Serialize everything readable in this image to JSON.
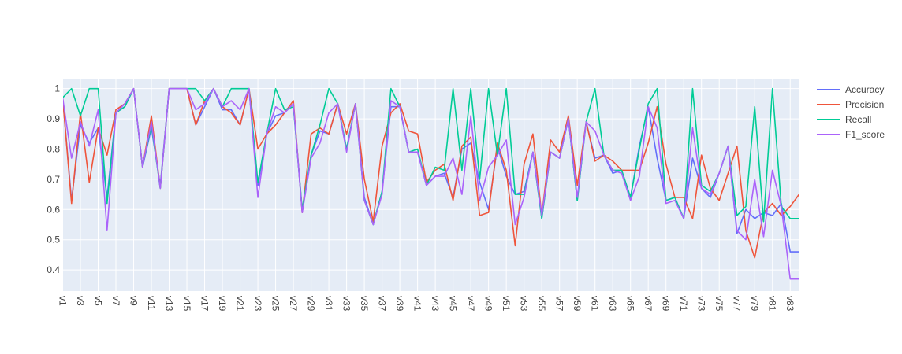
{
  "colors": {
    "plot_bg": "#e5ecf6",
    "grid": "#ffffff",
    "text": "#444444"
  },
  "chart_data": {
    "type": "line",
    "title": "",
    "xlabel": "",
    "ylabel": "",
    "ylim": [
      0.33,
      1.033
    ],
    "y_ticks": [
      0.4,
      0.5,
      0.6,
      0.7,
      0.8,
      0.9,
      1
    ],
    "x_tick_labels": [
      "v1",
      "v3",
      "v5",
      "v7",
      "v9",
      "v11",
      "v13",
      "v15",
      "v17",
      "v19",
      "v21",
      "v23",
      "v25",
      "v27",
      "v29",
      "v31",
      "v33",
      "v35",
      "v37",
      "v39",
      "v41",
      "v43",
      "v45",
      "v47",
      "v49",
      "v51",
      "v53",
      "v55",
      "v57",
      "v59",
      "v61",
      "v63",
      "v65",
      "v67",
      "v69",
      "v71",
      "v73",
      "v75",
      "v77",
      "v79",
      "v81",
      "v83"
    ],
    "categories": [
      "v1",
      "v2",
      "v3",
      "v4",
      "v5",
      "v6",
      "v7",
      "v8",
      "v9",
      "v10",
      "v11",
      "v12",
      "v13",
      "v14",
      "v15",
      "v16",
      "v17",
      "v18",
      "v19",
      "v20",
      "v21",
      "v22",
      "v23",
      "v24",
      "v25",
      "v26",
      "v27",
      "v28",
      "v29",
      "v30",
      "v31",
      "v32",
      "v33",
      "v34",
      "v35",
      "v36",
      "v37",
      "v38",
      "v39",
      "v40",
      "v41",
      "v42",
      "v43",
      "v44",
      "v45",
      "v46",
      "v47",
      "v48",
      "v49",
      "v50",
      "v51",
      "v52",
      "v53",
      "v54",
      "v55",
      "v56",
      "v57",
      "v58",
      "v59",
      "v60",
      "v61",
      "v62",
      "v63",
      "v64",
      "v65",
      "v66",
      "v67",
      "v68",
      "v69",
      "v70",
      "v71",
      "v72",
      "v73",
      "v74",
      "v75",
      "v76",
      "v77",
      "v78",
      "v79",
      "v80",
      "v81",
      "v82",
      "v83",
      "v84"
    ],
    "legend_position": "top-right",
    "series": [
      {
        "name": "Accuracy",
        "color": "#636efa",
        "values": [
          0.97,
          0.63,
          0.88,
          0.82,
          0.87,
          0.64,
          0.92,
          0.94,
          1.0,
          0.74,
          0.87,
          0.68,
          1.0,
          1.0,
          1.0,
          0.88,
          0.94,
          1.0,
          0.93,
          0.93,
          0.88,
          1.0,
          0.68,
          0.85,
          0.91,
          0.92,
          0.95,
          0.59,
          0.78,
          0.86,
          0.85,
          0.95,
          0.8,
          0.95,
          0.64,
          0.55,
          0.66,
          0.94,
          0.94,
          0.79,
          0.79,
          0.68,
          0.71,
          0.72,
          0.64,
          0.8,
          0.82,
          0.69,
          0.6,
          0.81,
          0.71,
          0.65,
          0.66,
          0.79,
          0.57,
          0.79,
          0.77,
          0.9,
          0.63,
          0.89,
          0.77,
          0.78,
          0.72,
          0.73,
          0.64,
          0.81,
          0.94,
          0.77,
          0.63,
          0.64,
          0.57,
          0.77,
          0.67,
          0.64,
          0.72,
          0.81,
          0.52,
          0.6,
          0.57,
          0.59,
          0.58,
          0.62,
          0.46,
          0.46
        ]
      },
      {
        "name": "Precision",
        "color": "#ef553b",
        "values": [
          0.97,
          0.62,
          0.92,
          0.69,
          0.87,
          0.78,
          0.93,
          0.95,
          1.0,
          0.74,
          0.91,
          0.67,
          1.0,
          1.0,
          1.0,
          0.88,
          0.96,
          1.0,
          0.94,
          0.92,
          0.88,
          1.0,
          0.8,
          0.85,
          0.88,
          0.92,
          0.96,
          0.59,
          0.85,
          0.87,
          0.85,
          0.95,
          0.85,
          0.95,
          0.7,
          0.56,
          0.81,
          0.92,
          0.95,
          0.86,
          0.85,
          0.69,
          0.73,
          0.75,
          0.63,
          0.81,
          0.84,
          0.58,
          0.59,
          0.82,
          0.73,
          0.48,
          0.75,
          0.85,
          0.58,
          0.83,
          0.79,
          0.91,
          0.68,
          0.89,
          0.76,
          0.78,
          0.76,
          0.73,
          0.73,
          0.73,
          0.82,
          0.94,
          0.75,
          0.64,
          0.64,
          0.57,
          0.78,
          0.67,
          0.63,
          0.72,
          0.81,
          0.53,
          0.44,
          0.59,
          0.62,
          0.58,
          0.61,
          0.65
        ]
      },
      {
        "name": "Recall",
        "color": "#00cc96",
        "values": [
          0.97,
          1.0,
          0.91,
          1.0,
          1.0,
          0.62,
          0.92,
          0.94,
          1.0,
          0.74,
          0.88,
          0.67,
          1.0,
          1.0,
          1.0,
          1.0,
          0.96,
          1.0,
          0.94,
          1.0,
          1.0,
          1.0,
          0.69,
          0.85,
          1.0,
          0.93,
          0.94,
          0.6,
          0.78,
          0.88,
          1.0,
          0.95,
          0.8,
          0.95,
          0.63,
          0.55,
          0.66,
          1.0,
          0.94,
          0.79,
          0.8,
          0.68,
          0.74,
          0.73,
          1.0,
          0.73,
          1.0,
          0.7,
          1.0,
          0.78,
          1.0,
          0.65,
          0.65,
          0.79,
          0.57,
          0.79,
          0.77,
          0.9,
          0.63,
          0.89,
          1.0,
          0.78,
          0.73,
          0.73,
          0.64,
          0.8,
          0.95,
          1.0,
          0.63,
          0.64,
          0.57,
          1.0,
          0.68,
          0.66,
          0.72,
          0.81,
          0.58,
          0.61,
          0.94,
          0.56,
          1.0,
          0.61,
          0.57,
          0.57
        ]
      },
      {
        "name": "F1_score",
        "color": "#ab63fa",
        "values": [
          0.97,
          0.77,
          0.89,
          0.81,
          0.93,
          0.53,
          0.92,
          0.95,
          1.0,
          0.74,
          0.89,
          0.67,
          1.0,
          1.0,
          1.0,
          0.93,
          0.95,
          1.0,
          0.94,
          0.96,
          0.93,
          1.0,
          0.64,
          0.85,
          0.94,
          0.92,
          0.95,
          0.59,
          0.77,
          0.82,
          0.92,
          0.95,
          0.79,
          0.95,
          0.63,
          0.55,
          0.65,
          0.96,
          0.94,
          0.79,
          0.79,
          0.68,
          0.71,
          0.71,
          0.77,
          0.65,
          0.91,
          0.63,
          0.74,
          0.78,
          0.83,
          0.55,
          0.64,
          0.79,
          0.58,
          0.79,
          0.77,
          0.9,
          0.64,
          0.89,
          0.86,
          0.78,
          0.73,
          0.72,
          0.63,
          0.71,
          0.94,
          0.87,
          0.62,
          0.63,
          0.57,
          0.87,
          0.67,
          0.65,
          0.72,
          0.81,
          0.53,
          0.5,
          0.7,
          0.51,
          0.73,
          0.61,
          0.37,
          0.37
        ]
      }
    ]
  }
}
